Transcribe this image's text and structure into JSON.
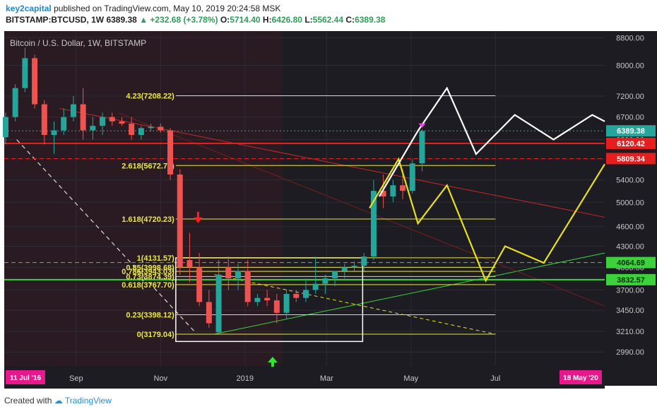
{
  "header": {
    "publisher": "key2capital",
    "published_text": "published on TradingView.com, May 10, 2019 20:24:58 MSK",
    "symbol": "BITSTAMP:BTCUSD, 1W",
    "last": "6389.38",
    "change": "+232.68 (+3.78%)",
    "o_label": "O:",
    "o_value": "5714.40",
    "h_label": "H:",
    "h_value": "6426.80",
    "l_label": "L:",
    "l_value": "5562.44",
    "c_label": "C:",
    "c_value": "6389.38"
  },
  "footer": {
    "created_with": "Created with",
    "brand": "TradingView"
  },
  "colors": {
    "background": "#1c1c22",
    "bull": "#26a69a",
    "bear": "#ef5350",
    "fib": "#e8e84a",
    "support": "#3cd23c",
    "resistance": "#e81e1e",
    "projection_white": "#ffffff",
    "projection_yellow": "#e8e01c"
  },
  "chart_data": {
    "type": "candlestick",
    "title": "Bitcoin / U.S. Dollar, 1W, BITSTAMP",
    "y_scale": "log",
    "ylim": [
      2850,
      9000
    ],
    "y_ticks": [
      8800,
      8000,
      7200,
      6700,
      6200,
      5800,
      5400,
      5000,
      4600,
      4300,
      4000,
      3700,
      3450,
      3210,
      2990
    ],
    "x_range": [
      "2018-07-11",
      "2019-09-18"
    ],
    "x_ticks": [
      {
        "date": "2018-09-01",
        "label": "Sep"
      },
      {
        "date": "2018-11-01",
        "label": "Nov"
      },
      {
        "date": "2019-01-01",
        "label": "2019"
      },
      {
        "date": "2019-03-01",
        "label": "Mar"
      },
      {
        "date": "2019-05-01",
        "label": "May"
      },
      {
        "date": "2019-07-01",
        "label": "Jul"
      }
    ],
    "x_start_badge": "11 Jul '16",
    "x_end_badge": "18 May '20",
    "candles": [
      {
        "date": "2018-07-09",
        "o": 6250,
        "h": 6800,
        "l": 6100,
        "c": 6700
      },
      {
        "date": "2018-07-16",
        "o": 6700,
        "h": 7500,
        "l": 6600,
        "c": 7400
      },
      {
        "date": "2018-07-23",
        "o": 7400,
        "h": 8500,
        "l": 7300,
        "c": 8200
      },
      {
        "date": "2018-07-30",
        "o": 8200,
        "h": 8300,
        "l": 6900,
        "c": 7000
      },
      {
        "date": "2018-08-06",
        "o": 7000,
        "h": 7100,
        "l": 6100,
        "c": 6300
      },
      {
        "date": "2018-08-13",
        "o": 6300,
        "h": 6600,
        "l": 5900,
        "c": 6400
      },
      {
        "date": "2018-08-20",
        "o": 6400,
        "h": 6900,
        "l": 6300,
        "c": 6700
      },
      {
        "date": "2018-08-27",
        "o": 6700,
        "h": 7200,
        "l": 6600,
        "c": 7000
      },
      {
        "date": "2018-09-03",
        "o": 7000,
        "h": 7400,
        "l": 6200,
        "c": 6400
      },
      {
        "date": "2018-09-10",
        "o": 6400,
        "h": 6700,
        "l": 6200,
        "c": 6500
      },
      {
        "date": "2018-09-17",
        "o": 6500,
        "h": 6800,
        "l": 6300,
        "c": 6700
      },
      {
        "date": "2018-09-24",
        "o": 6700,
        "h": 6800,
        "l": 6500,
        "c": 6600
      },
      {
        "date": "2018-10-01",
        "o": 6600,
        "h": 6700,
        "l": 6500,
        "c": 6550
      },
      {
        "date": "2018-10-08",
        "o": 6550,
        "h": 6700,
        "l": 6200,
        "c": 6300
      },
      {
        "date": "2018-10-15",
        "o": 6300,
        "h": 6500,
        "l": 6200,
        "c": 6450
      },
      {
        "date": "2018-10-22",
        "o": 6450,
        "h": 6550,
        "l": 6380,
        "c": 6480
      },
      {
        "date": "2018-10-29",
        "o": 6480,
        "h": 6550,
        "l": 6350,
        "c": 6400
      },
      {
        "date": "2018-11-05",
        "o": 6400,
        "h": 6450,
        "l": 5400,
        "c": 5500
      },
      {
        "date": "2018-11-12",
        "o": 5500,
        "h": 5600,
        "l": 3900,
        "c": 4000
      },
      {
        "date": "2018-11-19",
        "o": 4100,
        "h": 4500,
        "l": 3800,
        "c": 4000
      },
      {
        "date": "2018-11-26",
        "o": 4000,
        "h": 4200,
        "l": 3500,
        "c": 3550
      },
      {
        "date": "2018-12-03",
        "o": 3550,
        "h": 3700,
        "l": 3250,
        "c": 3300
      },
      {
        "date": "2018-12-10",
        "o": 3200,
        "h": 4100,
        "l": 3180,
        "c": 3900
      },
      {
        "date": "2018-12-17",
        "o": 4000,
        "h": 4150,
        "l": 3700,
        "c": 3850
      },
      {
        "date": "2018-12-24",
        "o": 3850,
        "h": 4050,
        "l": 3700,
        "c": 3950
      },
      {
        "date": "2018-12-31",
        "o": 3950,
        "h": 4100,
        "l": 3500,
        "c": 3550
      },
      {
        "date": "2019-01-07",
        "o": 3550,
        "h": 3650,
        "l": 3500,
        "c": 3600
      },
      {
        "date": "2019-01-14",
        "o": 3600,
        "h": 3700,
        "l": 3500,
        "c": 3570
      },
      {
        "date": "2019-01-21",
        "o": 3570,
        "h": 3650,
        "l": 3300,
        "c": 3420
      },
      {
        "date": "2019-01-28",
        "o": 3420,
        "h": 3700,
        "l": 3350,
        "c": 3650
      },
      {
        "date": "2019-02-04",
        "o": 3650,
        "h": 3700,
        "l": 3550,
        "c": 3600
      },
      {
        "date": "2019-02-11",
        "o": 3600,
        "h": 3850,
        "l": 3550,
        "c": 3700
      },
      {
        "date": "2019-02-18",
        "o": 3700,
        "h": 4150,
        "l": 3650,
        "c": 3780
      },
      {
        "date": "2019-02-25",
        "o": 3780,
        "h": 3900,
        "l": 3650,
        "c": 3850
      },
      {
        "date": "2019-03-04",
        "o": 3850,
        "h": 3950,
        "l": 3750,
        "c": 3950
      },
      {
        "date": "2019-03-11",
        "o": 3950,
        "h": 4050,
        "l": 3850,
        "c": 4000
      },
      {
        "date": "2019-03-18",
        "o": 4000,
        "h": 4080,
        "l": 3950,
        "c": 4020
      },
      {
        "date": "2019-03-25",
        "o": 4020,
        "h": 4200,
        "l": 3950,
        "c": 4150
      },
      {
        "date": "2019-04-01",
        "o": 4150,
        "h": 5400,
        "l": 4100,
        "c": 5200
      },
      {
        "date": "2019-04-08",
        "o": 5200,
        "h": 5500,
        "l": 4900,
        "c": 5100
      },
      {
        "date": "2019-04-15",
        "o": 5100,
        "h": 5400,
        "l": 5000,
        "c": 5300
      },
      {
        "date": "2019-04-22",
        "o": 5300,
        "h": 5600,
        "l": 5050,
        "c": 5200
      },
      {
        "date": "2019-04-29",
        "o": 5200,
        "h": 5800,
        "l": 5150,
        "c": 5714
      },
      {
        "date": "2019-05-06",
        "o": 5714.4,
        "h": 6426.8,
        "l": 5562.44,
        "c": 6389.38
      }
    ],
    "fib_levels": [
      {
        "label": "4.23(7208.22)",
        "value": 7208.22
      },
      {
        "label": "2.618(5672.75)",
        "value": 5672.75
      },
      {
        "label": "1.618(4720.23)",
        "value": 4720.23
      },
      {
        "label": "1(4131.57)",
        "value": 4131.57
      },
      {
        "label": "0.85(3998.68)",
        "value": 3998.68
      },
      {
        "label": "0.786(3943.03)",
        "value": 3943.03
      },
      {
        "label": "0.73(3874.39)",
        "value": 3874.39
      },
      {
        "label": "0.618(3767.70)",
        "value": 3767.7
      },
      {
        "label": "0.23(3398.12)",
        "value": 3398.12
      },
      {
        "label": "0(3179.04)",
        "value": 3179.04
      }
    ],
    "price_labels": [
      {
        "value": 6389.38,
        "text": "6389.38",
        "color": "#26a69a"
      },
      {
        "value": 6120.42,
        "text": "6120.42",
        "color": "#e81e1e"
      },
      {
        "value": 5809.34,
        "text": "5809.34",
        "color": "#e81e1e"
      },
      {
        "value": 4064.69,
        "text": "4064.69",
        "color": "#3cd23c"
      },
      {
        "value": 3832.57,
        "text": "3832.57",
        "color": "#3cd23c"
      }
    ],
    "horizontal_lines": [
      {
        "value": 6389.38,
        "style": "dotted",
        "color": "#26a69a"
      },
      {
        "value": 6120.42,
        "style": "solid",
        "color": "#e81e1e"
      },
      {
        "value": 5809.34,
        "style": "dashed",
        "color": "#e81e1e"
      },
      {
        "value": 4064.69,
        "style": "dashed",
        "color": "#3cd23c"
      },
      {
        "value": 3832.57,
        "style": "solid",
        "color": "#3cd23c"
      }
    ],
    "projection_white": [
      {
        "date": "2019-04-08",
        "v": 5100
      },
      {
        "date": "2019-05-06",
        "v": 6389
      },
      {
        "date": "2019-05-27",
        "v": 7400
      },
      {
        "date": "2019-06-17",
        "v": 5900
      },
      {
        "date": "2019-07-15",
        "v": 6750
      },
      {
        "date": "2019-08-12",
        "v": 6200
      },
      {
        "date": "2019-09-09",
        "v": 6750
      },
      {
        "date": "2019-09-18",
        "v": 6600
      }
    ],
    "projection_yellow": [
      {
        "date": "2019-04-01",
        "v": 4900
      },
      {
        "date": "2019-04-22",
        "v": 5800
      },
      {
        "date": "2019-05-06",
        "v": 4650
      },
      {
        "date": "2019-05-27",
        "v": 5300
      },
      {
        "date": "2019-06-24",
        "v": 3820
      },
      {
        "date": "2019-07-08",
        "v": 4300
      },
      {
        "date": "2019-08-05",
        "v": 4060
      },
      {
        "date": "2019-09-18",
        "v": 5700
      }
    ]
  }
}
